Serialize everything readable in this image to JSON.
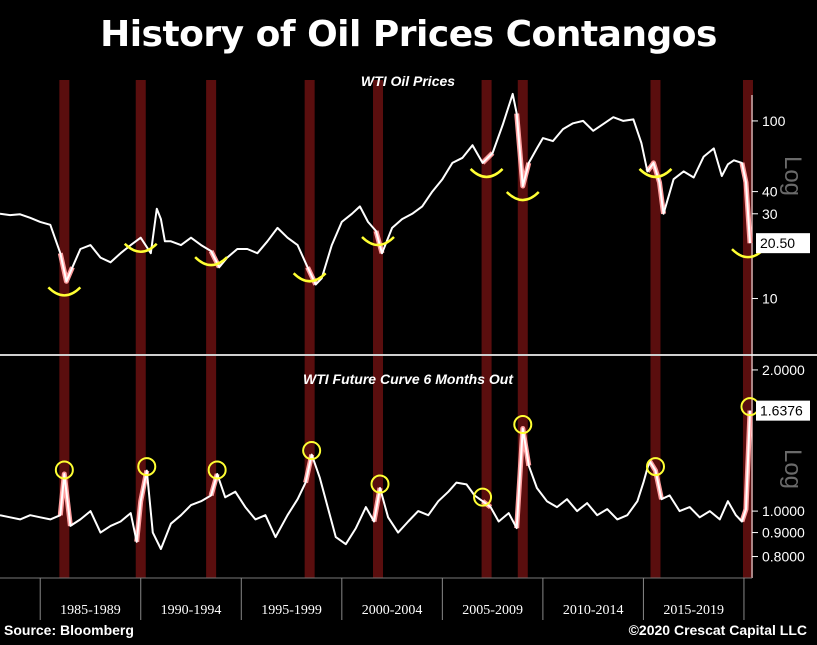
{
  "chart_data": {
    "title": "History of Oil Prices Contangos",
    "source": "Source: Bloomberg",
    "copyright": "©2020 Crescat Capital LLC",
    "x_range": [
      1983,
      2020.4
    ],
    "period_labels": [
      "1985-1989",
      "1990-1994",
      "1995-1999",
      "2000-2004",
      "2005-2009",
      "2010-2014",
      "2015-2019"
    ],
    "contango_periods": [
      1986.2,
      1990.0,
      1993.5,
      1998.4,
      2001.8,
      2007.2,
      2009.0,
      2015.6,
      2020.2
    ],
    "colors": {
      "line": "#ffffff",
      "band": "#5a0e0e",
      "highlight": "#ff9e9e",
      "marker": "#ffff33",
      "grid": "#ffffff",
      "background": "#000000"
    },
    "panels": [
      {
        "type": "line",
        "title": "WTI Oil Prices",
        "scale": "log",
        "axis_label": "Log",
        "ylim": [
          5,
          170
        ],
        "ticks": [
          10,
          30,
          40,
          100
        ],
        "last_value": "20.50",
        "series": {
          "x": [
            1983.0,
            1983.5,
            1984.0,
            1984.5,
            1985.0,
            1985.5,
            1986.0,
            1986.3,
            1986.6,
            1987.0,
            1987.5,
            1988.0,
            1988.5,
            1989.0,
            1989.5,
            1990.0,
            1990.5,
            1990.8,
            1991.0,
            1991.2,
            1991.5,
            1992.0,
            1992.5,
            1993.0,
            1993.5,
            1993.9,
            1994.3,
            1994.8,
            1995.3,
            1995.8,
            1996.3,
            1996.8,
            1997.3,
            1997.8,
            1998.3,
            1998.7,
            1999.0,
            1999.5,
            2000.0,
            2000.5,
            2000.9,
            2001.3,
            2001.7,
            2002.0,
            2002.5,
            2003.0,
            2003.5,
            2004.0,
            2004.5,
            2005.0,
            2005.5,
            2006.0,
            2006.5,
            2007.0,
            2007.5,
            2008.0,
            2008.5,
            2008.7,
            2009.0,
            2009.3,
            2009.7,
            2010.0,
            2010.5,
            2011.0,
            2011.5,
            2012.0,
            2012.5,
            2013.0,
            2013.5,
            2014.0,
            2014.5,
            2014.9,
            2015.2,
            2015.5,
            2015.8,
            2016.0,
            2016.5,
            2017.0,
            2017.5,
            2018.0,
            2018.5,
            2018.9,
            2019.2,
            2019.5,
            2019.9,
            2020.1,
            2020.3
          ],
          "values": [
            30,
            29.5,
            29.8,
            28.5,
            27,
            26,
            18,
            12.5,
            15,
            19,
            20,
            17,
            16,
            18,
            20,
            22,
            18,
            32,
            28,
            21,
            21,
            20,
            22,
            20,
            18.5,
            15,
            17,
            19,
            19,
            18,
            21,
            25,
            22,
            20,
            15,
            12,
            13,
            20,
            27,
            30,
            33,
            27,
            24,
            18,
            25,
            28,
            30,
            33,
            40,
            47,
            58,
            62,
            73,
            58,
            66,
            95,
            142,
            110,
            43,
            58,
            70,
            80,
            77,
            90,
            97,
            100,
            88,
            96,
            105,
            100,
            102,
            75,
            52,
            58,
            45,
            30,
            47,
            52,
            48,
            63,
            70,
            49,
            57,
            60,
            58,
            45,
            20.5
          ]
        }
      },
      {
        "type": "line",
        "title": "WTI Future Curve 6 Months Out",
        "scale": "log",
        "axis_label": "Log",
        "ylim": [
          0.72,
          2.1
        ],
        "ticks": [
          0.8,
          0.9,
          1.0,
          2.0
        ],
        "tick_labels": [
          "0.8000",
          "0.9000",
          "1.0000",
          "2.0000"
        ],
        "last_value": "1.6376",
        "series": {
          "x": [
            1983.0,
            1983.5,
            1984.0,
            1984.5,
            1985.0,
            1985.5,
            1986.0,
            1986.2,
            1986.5,
            1987.0,
            1987.5,
            1988.0,
            1988.5,
            1989.0,
            1989.5,
            1989.8,
            1990.0,
            1990.3,
            1990.6,
            1991.0,
            1991.5,
            1992.0,
            1992.5,
            1993.0,
            1993.5,
            1993.8,
            1994.2,
            1994.7,
            1995.2,
            1995.7,
            1996.2,
            1996.7,
            1997.3,
            1997.8,
            1998.2,
            1998.5,
            1998.9,
            1999.3,
            1999.7,
            2000.2,
            2000.7,
            2001.2,
            2001.6,
            2001.9,
            2002.3,
            2002.8,
            2003.3,
            2003.8,
            2004.3,
            2004.8,
            2005.3,
            2005.7,
            2006.2,
            2006.6,
            2007.0,
            2007.4,
            2007.8,
            2008.3,
            2008.7,
            2009.0,
            2009.3,
            2009.7,
            2010.2,
            2010.7,
            2011.2,
            2011.7,
            2012.2,
            2012.7,
            2013.2,
            2013.7,
            2014.2,
            2014.7,
            2015.0,
            2015.3,
            2015.6,
            2015.9,
            2016.3,
            2016.8,
            2017.3,
            2017.8,
            2018.3,
            2018.8,
            2019.2,
            2019.6,
            2019.9,
            2020.1,
            2020.3
          ],
          "values": [
            0.98,
            0.97,
            0.96,
            0.98,
            0.97,
            0.96,
            0.98,
            1.2,
            0.93,
            0.96,
            1.0,
            0.9,
            0.93,
            0.95,
            0.99,
            0.86,
            1.05,
            1.22,
            0.9,
            0.83,
            0.94,
            0.98,
            1.03,
            1.05,
            1.08,
            1.2,
            1.07,
            1.1,
            1.02,
            0.96,
            0.98,
            0.88,
            0.98,
            1.06,
            1.15,
            1.32,
            1.18,
            1.02,
            0.88,
            0.85,
            0.92,
            1.02,
            0.95,
            1.12,
            0.97,
            0.9,
            0.95,
            1.0,
            0.98,
            1.05,
            1.1,
            1.15,
            1.14,
            1.08,
            1.05,
            1.02,
            0.95,
            0.99,
            0.92,
            1.5,
            1.25,
            1.12,
            1.05,
            1.02,
            1.06,
            1.0,
            1.04,
            0.98,
            1.01,
            0.96,
            0.98,
            1.05,
            1.15,
            1.28,
            1.22,
            1.06,
            1.08,
            1.0,
            1.02,
            0.97,
            1.0,
            0.96,
            1.05,
            0.98,
            0.95,
            1.01,
            1.6376
          ]
        },
        "highlighted_peaks": [
          1986.2,
          1990.3,
          1993.8,
          1998.5,
          2001.9,
          2007.0,
          2009.0,
          2015.6,
          2020.3
        ]
      }
    ]
  }
}
